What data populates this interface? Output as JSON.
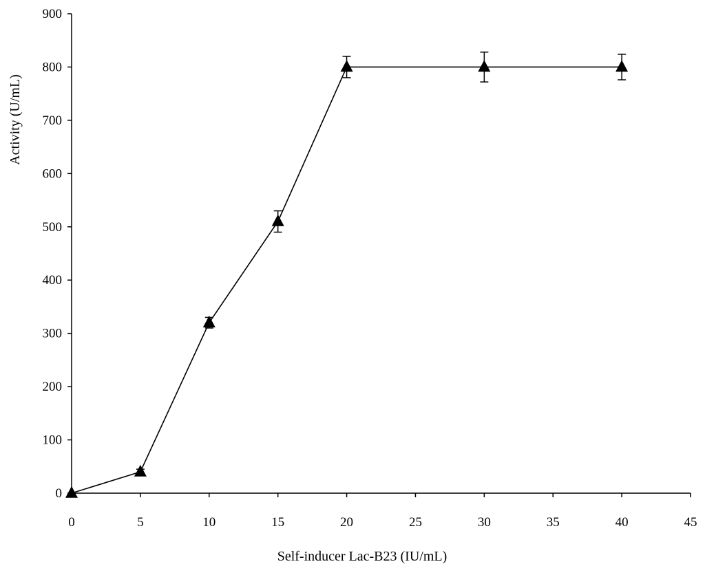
{
  "chart_data": {
    "type": "line",
    "title": "",
    "xlabel": "Self-inducer Lac-B23 (IU/mL)",
    "ylabel": "Activity (U/mL)",
    "xlim": [
      0,
      45
    ],
    "ylim": [
      0,
      900
    ],
    "xticks": [
      0,
      5,
      10,
      15,
      20,
      25,
      30,
      35,
      40,
      45
    ],
    "yticks": [
      0,
      100,
      200,
      300,
      400,
      500,
      600,
      700,
      800,
      900
    ],
    "grid": false,
    "legend": "none",
    "series": [
      {
        "marker": "filled-triangle",
        "color": "#000000",
        "x": [
          0,
          5,
          10,
          15,
          20,
          30,
          40
        ],
        "y": [
          0,
          40,
          320,
          510,
          800,
          800,
          800
        ],
        "error": [
          0,
          5,
          10,
          20,
          20,
          28,
          24
        ]
      }
    ]
  }
}
